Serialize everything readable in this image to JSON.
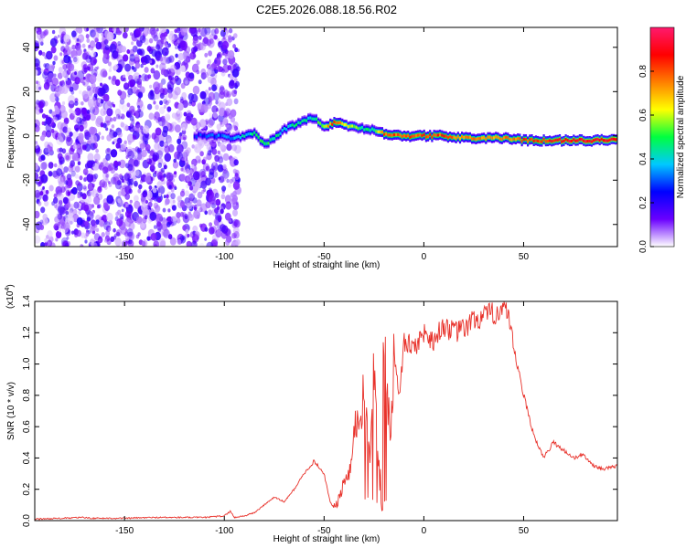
{
  "title": "C2E5.2026.088.18.56.R02",
  "chart_data": [
    {
      "type": "heatmap",
      "xlabel": "Height of straight line (km)",
      "ylabel": "Frequency (Hz)",
      "xlim": [
        -195,
        97
      ],
      "ylim": [
        -50,
        49
      ],
      "xticks": [
        -150,
        -100,
        -50,
        0,
        50
      ],
      "yticks": [
        -40,
        -20,
        0,
        20,
        40
      ],
      "colorbar": {
        "label": "Normalized spectral amplitude",
        "range": [
          0.0,
          1.0
        ],
        "ticks": [
          0.0,
          0.2,
          0.4,
          0.6,
          0.8
        ],
        "colormap": [
          "#ffffff",
          "#6a00ff",
          "#0000ff",
          "#00c8ff",
          "#00ff40",
          "#ffff00",
          "#ff7f00",
          "#ff0000",
          "#ff1a6e"
        ]
      },
      "noise_region": {
        "x": [
          -195,
          -93
        ],
        "amplitude": [
          0.02,
          0.2
        ]
      },
      "signal_track": {
        "x": [
          -115,
          -105,
          -95,
          -85,
          -80,
          -75,
          -70,
          -65,
          -60,
          -55,
          -50,
          -45,
          -40,
          -35,
          -30,
          -25,
          -20,
          -10,
          0,
          10,
          20,
          30,
          40,
          50,
          60,
          70,
          80,
          97
        ],
        "frequency": [
          0,
          0,
          -1,
          1,
          -4,
          -1,
          3,
          5,
          7,
          8,
          4,
          6,
          5,
          4,
          3,
          3,
          1,
          0,
          0,
          0,
          -1,
          -1,
          -1,
          -2,
          -2,
          -2,
          -2,
          -2
        ],
        "amplitude": [
          0.25,
          0.3,
          0.35,
          0.45,
          0.5,
          0.45,
          0.4,
          0.45,
          0.45,
          0.45,
          0.6,
          0.85,
          0.65,
          0.55,
          0.45,
          0.5,
          0.8,
          0.8,
          0.8,
          0.8,
          0.75,
          0.75,
          0.75,
          0.8,
          0.85,
          0.9,
          0.9,
          0.9
        ]
      }
    },
    {
      "type": "line",
      "xlabel": "Height of straight line (km)",
      "ylabel": "SNR (10 * v/v)",
      "y_multiplier": "(x10",
      "y_multiplier_exp": "4",
      "xlim": [
        -195,
        97
      ],
      "ylim": [
        0.0,
        1.4
      ],
      "xticks": [
        -150,
        -100,
        -50,
        0,
        50
      ],
      "yticks": [
        0.0,
        0.2,
        0.4,
        0.6,
        0.8,
        1.0,
        1.2,
        1.4
      ],
      "color": "#e8312a",
      "series": [
        {
          "x": [
            -195,
            -180,
            -172,
            -165,
            -150,
            -135,
            -120,
            -110,
            -100,
            -97,
            -95,
            -90,
            -85,
            -80,
            -75,
            -70,
            -65,
            -60,
            -55,
            -50,
            -47,
            -45,
            -42,
            -40,
            -37,
            -35,
            -32,
            -30,
            -27,
            -25,
            -22,
            -20,
            -17,
            -15,
            -12,
            -10,
            -5,
            0,
            5,
            10,
            15,
            20,
            25,
            30,
            35,
            38,
            40,
            42,
            45,
            50,
            55,
            60,
            65,
            70,
            75,
            80,
            85,
            90,
            97
          ],
          "y": [
            0.01,
            0.015,
            0.02,
            0.015,
            0.015,
            0.02,
            0.02,
            0.02,
            0.03,
            0.06,
            0.02,
            0.03,
            0.05,
            0.1,
            0.15,
            0.12,
            0.2,
            0.3,
            0.38,
            0.3,
            0.12,
            0.08,
            0.15,
            0.25,
            0.3,
            0.55,
            0.7,
            0.8,
            0.45,
            1.0,
            0.2,
            1.3,
            0.5,
            1.05,
            0.8,
            1.15,
            1.1,
            1.2,
            1.15,
            1.25,
            1.2,
            1.22,
            1.28,
            1.3,
            1.32,
            1.35,
            1.36,
            1.3,
            1.1,
            0.8,
            0.55,
            0.4,
            0.5,
            0.45,
            0.4,
            0.42,
            0.35,
            0.33,
            0.35
          ]
        }
      ]
    }
  ]
}
